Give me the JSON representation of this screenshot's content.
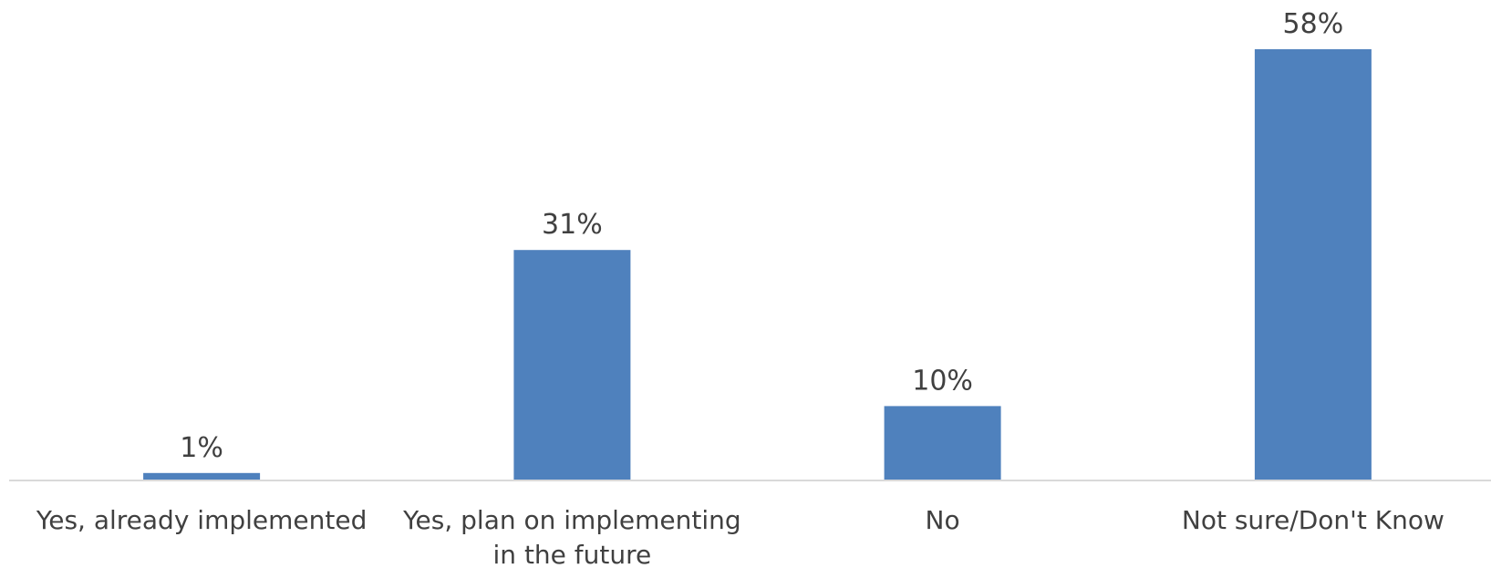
{
  "chart_data": {
    "type": "bar",
    "categories": [
      [
        "Yes, already implemented"
      ],
      [
        "Yes, plan on implementing",
        "in the future"
      ],
      [
        "No"
      ],
      [
        "Not sure/Don't Know"
      ]
    ],
    "values": [
      1,
      31,
      10,
      58
    ],
    "value_labels": [
      "1%",
      "31%",
      "10%",
      "58%"
    ],
    "unit": "%",
    "ylim": [
      0,
      58
    ],
    "grid": false,
    "legend": "none",
    "bar_color": "#4f81bd",
    "axis_color": "#d9d9d9",
    "text_color": "#404040"
  }
}
